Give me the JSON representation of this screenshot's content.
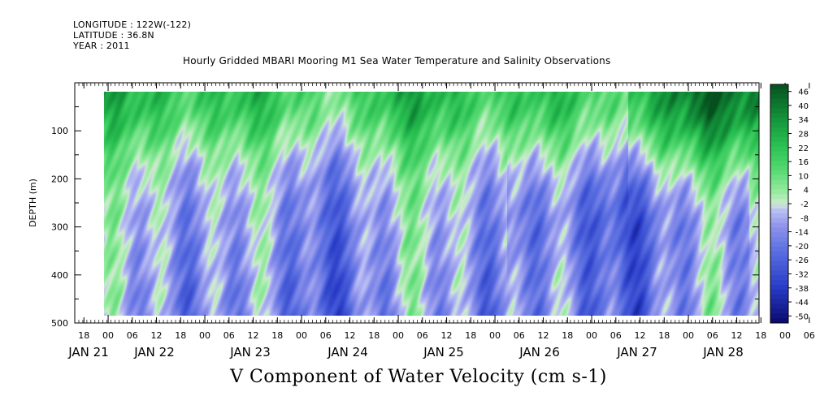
{
  "metadata": {
    "longitude": "LONGITUDE : 122W(-122)",
    "latitude": "LATITUDE : 36.8N",
    "year": "YEAR : 2011"
  },
  "chart_data": {
    "type": "heatmap",
    "title": "Hourly Gridded MBARI Mooring M1 Sea Water Temperature and Salinity Observations",
    "xlabel": "V Component of Water Velocity (cm s-1)",
    "ylabel": "DEPTH (m)",
    "ylim": [
      500,
      0
    ],
    "y_ticks": [
      100,
      200,
      300,
      400,
      500
    ],
    "data_depth_range": [
      20,
      490
    ],
    "x_range_hours": [
      "2011-01-20 12:00",
      "2011-01-28 18:00"
    ],
    "x_hour_ticks": [
      "18",
      "00",
      "06",
      "12",
      "18",
      "00",
      "06",
      "12",
      "18",
      "00",
      "06",
      "12",
      "18",
      "00",
      "06",
      "12",
      "18",
      "00",
      "06",
      "12",
      "18",
      "00",
      "06",
      "12",
      "18",
      "00",
      "06",
      "12",
      "18",
      "00",
      "06",
      "12"
    ],
    "x_day_labels": [
      "JAN 21",
      "JAN 22",
      "JAN 23",
      "JAN 24",
      "JAN 25",
      "JAN 26",
      "JAN 27",
      "JAN 28"
    ],
    "colorbar": {
      "levels": [
        "46",
        "40",
        "34",
        "28",
        "22",
        "16",
        "10",
        "4",
        "-2",
        "-8",
        "-14",
        "-20",
        "-26",
        "-32",
        "-38",
        "-44",
        "-50"
      ],
      "range": [
        -50,
        50
      ],
      "colormap": "dark-blue → light-blue → light-green → dark-green"
    },
    "description_bands": [
      {
        "depth": "20-150 m",
        "v": 20
      },
      {
        "depth": "150-490 m",
        "v": -12
      }
    ],
    "colors": {
      "negative_mid": "#8c8ce6",
      "near_zero": "#c8e6c8",
      "positive_mid": "#3cc85a",
      "positive_high": "#0a6e28"
    }
  }
}
